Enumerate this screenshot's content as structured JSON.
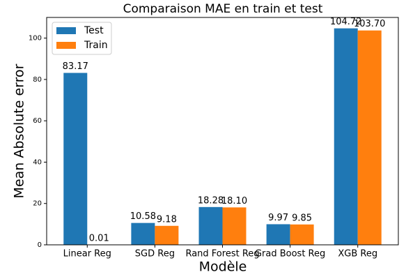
{
  "chart_data": {
    "type": "bar",
    "title": "Comparaison MAE en train et test",
    "xlabel": "Modèle",
    "ylabel": "Mean Absolute error",
    "categories": [
      "Linear Reg",
      "SGD Reg",
      "Rand Forest Reg",
      "Grad Boost Reg",
      "XGB Reg"
    ],
    "series": [
      {
        "name": "Test",
        "color": "#1f77b4",
        "values": [
          83.17,
          10.58,
          18.28,
          9.97,
          104.72
        ],
        "value_labels": [
          "83.17",
          "10.58",
          "18.28",
          "9.97",
          "104.72"
        ]
      },
      {
        "name": "Train",
        "color": "#ff7f0e",
        "values": [
          0.01,
          9.18,
          18.1,
          9.85,
          103.7
        ],
        "value_labels": [
          "0.01",
          "9.18",
          "18.10",
          "9.85",
          "103.70"
        ]
      }
    ],
    "ylim": [
      0,
      110
    ],
    "yticks": [
      0,
      20,
      40,
      60,
      80,
      100
    ],
    "legend": "upper-left"
  }
}
